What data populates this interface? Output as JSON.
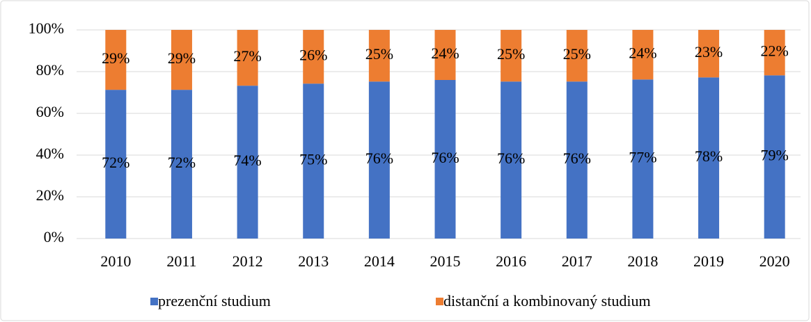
{
  "chart_data": {
    "type": "bar",
    "stacking": "percent",
    "categories": [
      "2010",
      "2011",
      "2012",
      "2013",
      "2014",
      "2015",
      "2016",
      "2017",
      "2018",
      "2019",
      "2020"
    ],
    "series": [
      {
        "name": "prezenční studium",
        "color": "#4472c4",
        "values": [
          72,
          72,
          74,
          75,
          76,
          76,
          76,
          76,
          77,
          78,
          79
        ],
        "value_labels": [
          "72%",
          "72%",
          "74%",
          "75%",
          "76%",
          "76%",
          "76%",
          "76%",
          "77%",
          "78%",
          "79%"
        ]
      },
      {
        "name": "distanční a kombinovaný studium",
        "color": "#ed7d31",
        "values": [
          29,
          29,
          27,
          26,
          25,
          24,
          25,
          25,
          24,
          23,
          22
        ],
        "value_labels": [
          "29%",
          "29%",
          "27%",
          "26%",
          "25%",
          "24%",
          "25%",
          "25%",
          "24%",
          "23%",
          "22%"
        ]
      }
    ],
    "ylim": [
      0,
      100
    ],
    "yticks": [
      {
        "value": 0,
        "label": "0%"
      },
      {
        "value": 20,
        "label": "20%"
      },
      {
        "value": 40,
        "label": "40%"
      },
      {
        "value": 60,
        "label": "60%"
      },
      {
        "value": 80,
        "label": "80%"
      },
      {
        "value": 100,
        "label": "100%"
      }
    ],
    "grid": true,
    "legend": "bottom"
  }
}
